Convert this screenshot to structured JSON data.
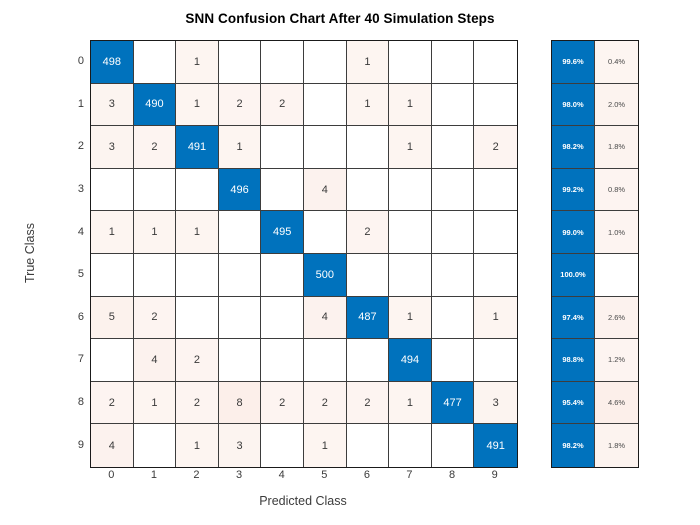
{
  "chart_data": {
    "type": "heatmap",
    "title": "SNN Confusion Chart After 40 Simulation Steps",
    "xlabel": "Predicted Class",
    "ylabel": "True Class",
    "classes": [
      "0",
      "1",
      "2",
      "3",
      "4",
      "5",
      "6",
      "7",
      "8",
      "9"
    ],
    "matrix": [
      [
        498,
        0,
        1,
        0,
        0,
        0,
        1,
        0,
        0,
        0
      ],
      [
        3,
        490,
        1,
        2,
        2,
        0,
        1,
        1,
        0,
        0
      ],
      [
        3,
        2,
        491,
        1,
        0,
        0,
        0,
        1,
        0,
        2
      ],
      [
        0,
        0,
        0,
        496,
        0,
        4,
        0,
        0,
        0,
        0
      ],
      [
        1,
        1,
        1,
        0,
        495,
        0,
        2,
        0,
        0,
        0
      ],
      [
        0,
        0,
        0,
        0,
        0,
        500,
        0,
        0,
        0,
        0
      ],
      [
        5,
        2,
        0,
        0,
        0,
        4,
        487,
        1,
        0,
        1
      ],
      [
        0,
        4,
        2,
        0,
        0,
        0,
        0,
        494,
        0,
        0
      ],
      [
        2,
        1,
        2,
        8,
        2,
        2,
        2,
        1,
        477,
        3
      ],
      [
        4,
        0,
        1,
        3,
        0,
        1,
        0,
        0,
        0,
        491
      ]
    ],
    "row_summary": [
      {
        "correct": "99.6%",
        "incorrect": "0.4%"
      },
      {
        "correct": "98.0%",
        "incorrect": "2.0%"
      },
      {
        "correct": "98.2%",
        "incorrect": "1.8%"
      },
      {
        "correct": "99.2%",
        "incorrect": "0.8%"
      },
      {
        "correct": "99.0%",
        "incorrect": "1.0%"
      },
      {
        "correct": "100.0%",
        "incorrect": ""
      },
      {
        "correct": "97.4%",
        "incorrect": "2.6%"
      },
      {
        "correct": "98.8%",
        "incorrect": "1.2%"
      },
      {
        "correct": "95.4%",
        "incorrect": "4.6%"
      },
      {
        "correct": "98.2%",
        "incorrect": "1.8%"
      }
    ],
    "legend_position": "none",
    "grid": true,
    "colors": {
      "diagonal": "#0072BD",
      "off_diagonal_base": "#D95319",
      "empty_cell": "#FFFFFF",
      "grid_line": "#3d3d3d",
      "outer_border": "#1a1a1a",
      "cell_text": "#3a3a3a",
      "diagonal_text": "#ffffff"
    }
  }
}
